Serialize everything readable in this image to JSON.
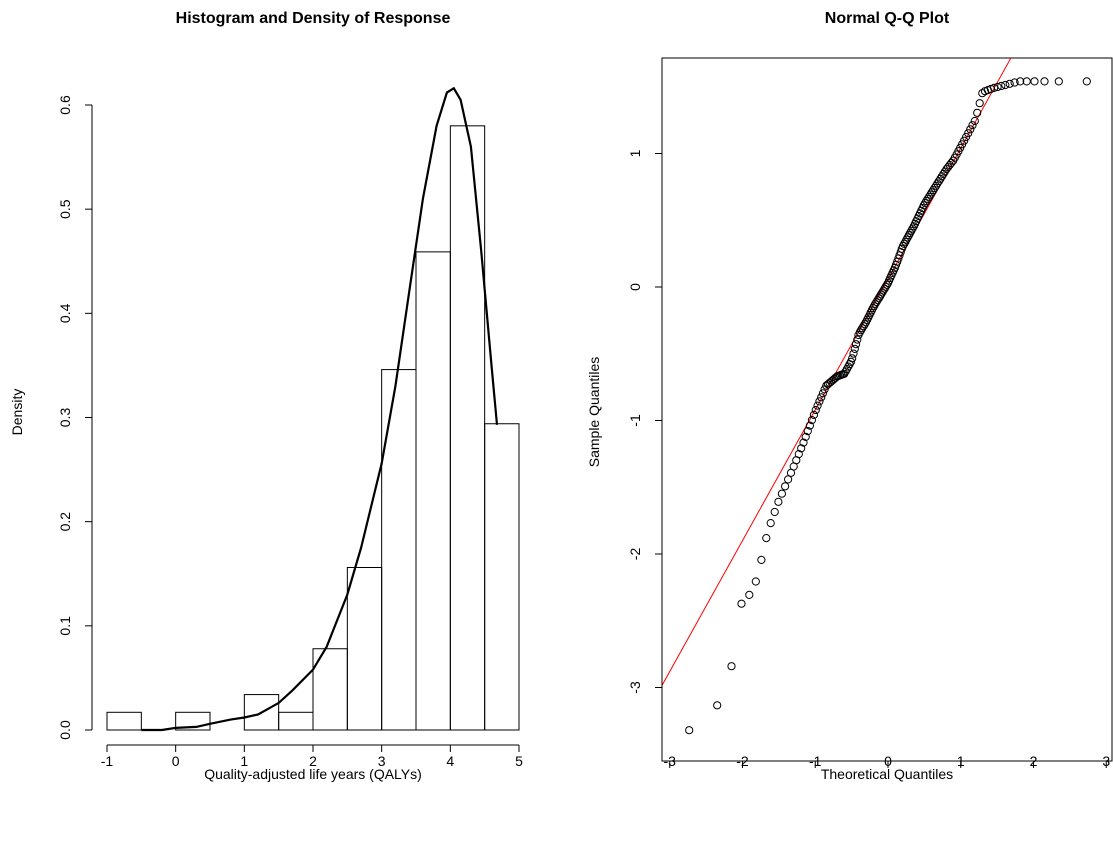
{
  "colors": {
    "ink": "#000000",
    "ref_line": "#ff0000",
    "background": "#ffffff"
  },
  "chart_data": [
    {
      "type": "bar",
      "subtype": "histogram-with-density",
      "title": "Histogram and Density of Response",
      "xlabel": "Quality-adjusted life years (QALYs)",
      "ylabel": "Density",
      "xlim": [
        -1,
        5
      ],
      "ylim": [
        0,
        0.6
      ],
      "xticks": [
        -1,
        0,
        1,
        2,
        3,
        4,
        5
      ],
      "xtick_labels": [
        "-1",
        "0",
        "1",
        "2",
        "3",
        "4",
        "5"
      ],
      "yticks": [
        0,
        0.1,
        0.2,
        0.3,
        0.4,
        0.5,
        0.6
      ],
      "ytick_labels": [
        "0.0",
        "0.1",
        "0.2",
        "0.3",
        "0.4",
        "0.5",
        "0.6"
      ],
      "bins": [
        {
          "x0": -1.0,
          "x1": -0.5,
          "density": 0.017
        },
        {
          "x0": -0.5,
          "x1": 0.0,
          "density": 0.0
        },
        {
          "x0": 0.0,
          "x1": 0.5,
          "density": 0.017
        },
        {
          "x0": 0.5,
          "x1": 1.0,
          "density": 0.0
        },
        {
          "x0": 1.0,
          "x1": 1.5,
          "density": 0.034
        },
        {
          "x0": 1.5,
          "x1": 2.0,
          "density": 0.017
        },
        {
          "x0": 2.0,
          "x1": 2.5,
          "density": 0.078
        },
        {
          "x0": 2.5,
          "x1": 3.0,
          "density": 0.156
        },
        {
          "x0": 3.0,
          "x1": 3.5,
          "density": 0.346
        },
        {
          "x0": 3.5,
          "x1": 4.0,
          "density": 0.459
        },
        {
          "x0": 4.0,
          "x1": 4.5,
          "density": 0.58
        },
        {
          "x0": 4.5,
          "x1": 5.0,
          "density": 0.294
        }
      ],
      "density_curve": {
        "x": [
          -0.5,
          -0.2,
          0.0,
          0.3,
          0.5,
          0.8,
          1.0,
          1.2,
          1.5,
          1.7,
          2.0,
          2.2,
          2.5,
          2.7,
          3.0,
          3.2,
          3.4,
          3.6,
          3.8,
          3.95,
          4.05,
          4.15,
          4.3,
          4.45,
          4.6,
          4.68
        ],
        "y": [
          0.0,
          0.0,
          0.002,
          0.003,
          0.006,
          0.01,
          0.012,
          0.015,
          0.026,
          0.038,
          0.058,
          0.08,
          0.13,
          0.175,
          0.256,
          0.33,
          0.42,
          0.51,
          0.58,
          0.612,
          0.616,
          0.605,
          0.56,
          0.46,
          0.35,
          0.293
        ]
      }
    },
    {
      "type": "scatter",
      "subtype": "normal-qq",
      "title": "Normal Q-Q Plot",
      "xlabel": "Theoretical Quantiles",
      "ylabel": "Sample Quantiles",
      "xlim": [
        -3.15,
        3.15
      ],
      "ylim": [
        -3.5,
        1.72
      ],
      "xticks": [
        -3,
        -2,
        -1,
        0,
        1,
        2,
        3
      ],
      "xtick_labels": [
        "-3",
        "-2",
        "-1",
        "0",
        "1",
        "2",
        "3"
      ],
      "yticks": [
        -3,
        -2,
        -1,
        0,
        1
      ],
      "ytick_labels": [
        "-3",
        "-2",
        "-1",
        "0",
        "1"
      ],
      "reference_line": {
        "intercept": 0.06,
        "slope": 0.98
      },
      "sample_size": 159,
      "anchor_quantiles": {
        "theoretical": [
          -2.86,
          -2.46,
          -2.25,
          -2.16,
          -2.05,
          -1.96,
          -1.88,
          -1.77,
          -1.72,
          -1.62,
          -1.5,
          -1.3,
          -1.15,
          -1.0,
          -0.85,
          -0.7,
          -0.6,
          -0.5,
          -0.4,
          -0.3,
          -0.2,
          0.0,
          0.1,
          0.2,
          0.35,
          0.5,
          0.65,
          0.8,
          0.9,
          1.0,
          1.1,
          1.2,
          1.3,
          1.45,
          1.8,
          2.2,
          2.86
        ],
        "sample": [
          -3.32,
          -3.32,
          -2.97,
          -2.88,
          -2.38,
          -2.36,
          -2.28,
          -2.15,
          -1.97,
          -1.78,
          -1.6,
          -1.35,
          -1.15,
          -0.93,
          -0.74,
          -0.67,
          -0.65,
          -0.55,
          -0.35,
          -0.26,
          -0.15,
          0.03,
          0.15,
          0.3,
          0.45,
          0.62,
          0.75,
          0.88,
          0.95,
          1.05,
          1.15,
          1.25,
          1.46,
          1.49,
          1.54,
          1.54,
          1.54
        ]
      }
    }
  ]
}
